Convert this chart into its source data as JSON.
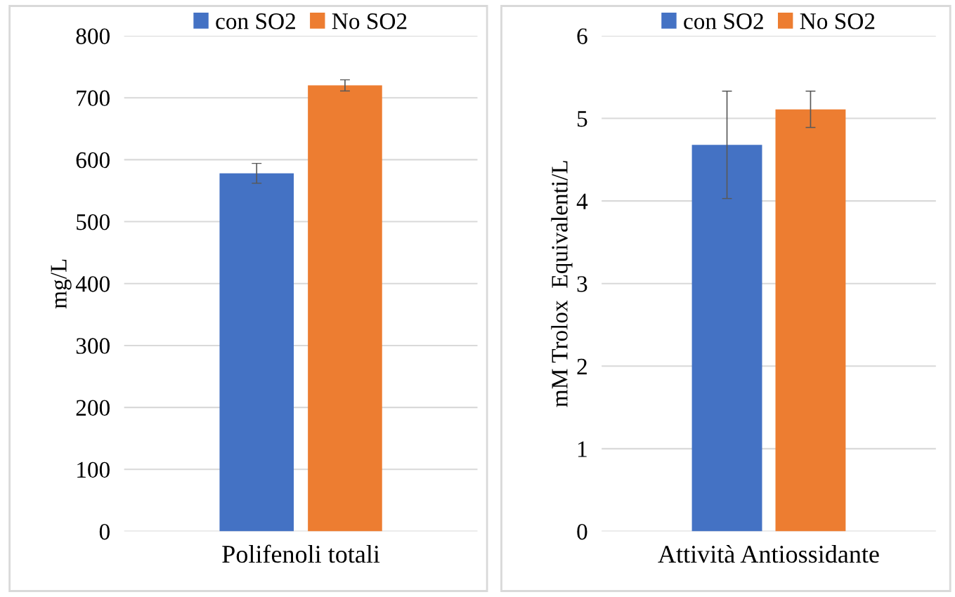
{
  "chart_data": [
    {
      "type": "bar",
      "categories": [
        "Polifenoli totali"
      ],
      "ylabel": "mg/L",
      "ylim": [
        0,
        800
      ],
      "yticks": [
        0,
        100,
        200,
        300,
        400,
        500,
        600,
        700,
        800
      ],
      "grid": "y",
      "legend": "top",
      "series": [
        {
          "name": "con SO2",
          "color": "#4472c4",
          "values": [
            578
          ],
          "errors": [
            16
          ]
        },
        {
          "name": "No SO2",
          "color": "#ed7d31",
          "values": [
            720
          ],
          "errors": [
            9
          ]
        }
      ]
    },
    {
      "type": "bar",
      "categories": [
        "Attività Antiossidante"
      ],
      "ylabel": "mM Trolox  Equivalenti/L",
      "ylim": [
        0,
        6
      ],
      "yticks": [
        0,
        1,
        2,
        3,
        4,
        5,
        6
      ],
      "grid": "y",
      "legend": "top",
      "series": [
        {
          "name": "con SO2",
          "color": "#4472c4",
          "values": [
            4.68
          ],
          "errors": [
            0.65
          ]
        },
        {
          "name": "No SO2",
          "color": "#ed7d31",
          "values": [
            5.11
          ],
          "errors": [
            0.22
          ]
        }
      ]
    }
  ]
}
